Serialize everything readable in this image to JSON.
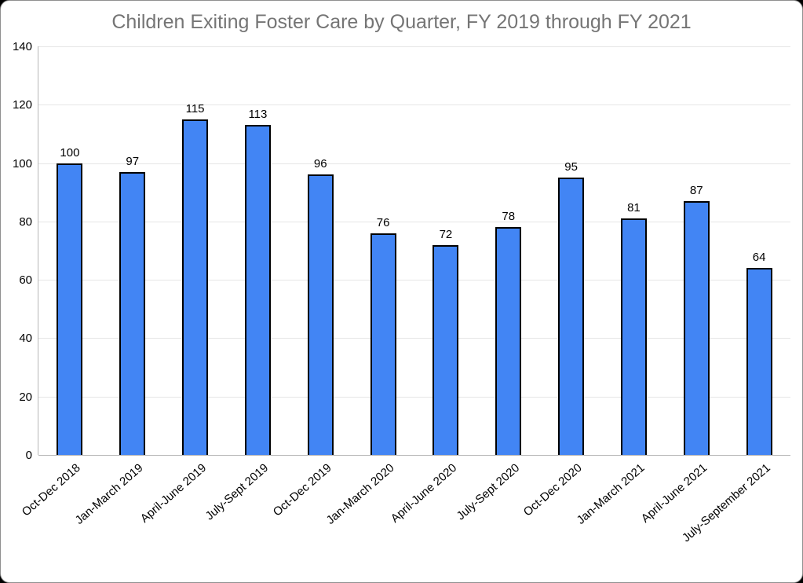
{
  "chart_data": {
    "type": "bar",
    "title": "Children Exiting Foster Care by Quarter, FY 2019 through FY 2021",
    "categories": [
      "Oct-Dec 2018",
      "Jan-March 2019",
      "April-June 2019",
      "July-Sept 2019",
      "Oct-Dec 2019",
      "Jan-March 2020",
      "April-June 2020",
      "July-Sept 2020",
      "Oct-Dec 2020",
      "Jan-March 2021",
      "April-June 2021",
      "July-September 2021"
    ],
    "values": [
      100,
      97,
      115,
      113,
      96,
      76,
      72,
      78,
      95,
      81,
      87,
      64
    ],
    "value_labels_shown": true,
    "xlabel": "",
    "ylabel": "",
    "ylim": [
      0,
      140
    ],
    "yticks": [
      0,
      20,
      40,
      60,
      80,
      100,
      120,
      140
    ],
    "grid": "horizontal",
    "legend": "none",
    "colors": {
      "bar_fill": "#4285f4",
      "bar_border": "#000000",
      "gridline": "#e6e6e6",
      "axis_line": "#b7b7b7",
      "title_text": "#757575",
      "label_text": "#000000",
      "background": "#ffffff"
    }
  }
}
